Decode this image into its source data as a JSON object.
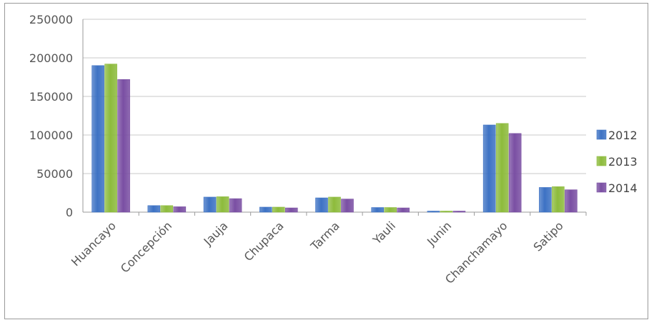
{
  "chart_data": {
    "type": "bar",
    "categories": [
      "Huancayo",
      "Concepción",
      "Jauja",
      "Chupaca",
      "Tarma",
      "Yauli",
      "Junin",
      "Chanchamayo",
      "Satipo"
    ],
    "series": [
      {
        "name": "2012",
        "values": [
          190000,
          8500,
          19500,
          6500,
          18500,
          6000,
          1000,
          113000,
          32000
        ],
        "color": "#3d72c4"
      },
      {
        "name": "2013",
        "values": [
          192000,
          8500,
          20000,
          6500,
          19500,
          6000,
          1000,
          115000,
          33000
        ],
        "color": "#8dbb3c"
      },
      {
        "name": "2014",
        "values": [
          172000,
          7000,
          17500,
          5500,
          17000,
          5500,
          1000,
          102000,
          29000
        ],
        "color": "#7a4fa3"
      }
    ],
    "yticks": [
      "0",
      "50000",
      "100000",
      "150000",
      "200000",
      "250000"
    ],
    "ylim": [
      0,
      250000
    ],
    "title": "",
    "xlabel": "",
    "ylabel": "",
    "grid": true,
    "legend": "right"
  }
}
